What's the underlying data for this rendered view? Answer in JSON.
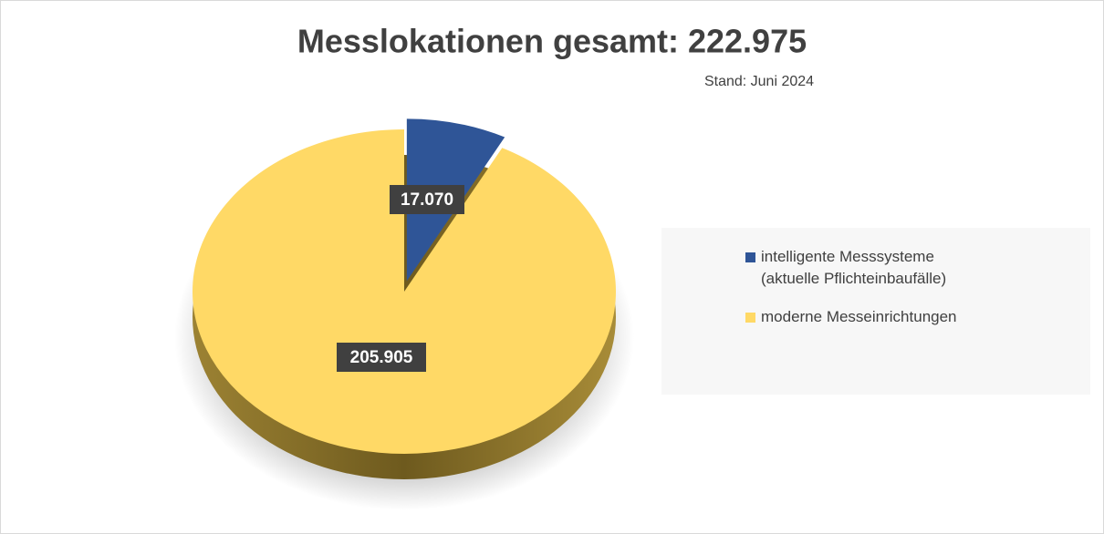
{
  "chart_data": {
    "type": "pie",
    "title": "Messlokationen gesamt: 222.975",
    "subtitle": "Stand: Juni 2024",
    "categories": [
      "intelligente Messsysteme\n(aktuelle Pflichteinbaufälle)",
      "moderne Messeinrichtungen"
    ],
    "values": [
      17070,
      205905
    ],
    "value_labels": [
      "17.070",
      "205.905"
    ],
    "colors": [
      "#2f5597",
      "#ffd966"
    ]
  }
}
